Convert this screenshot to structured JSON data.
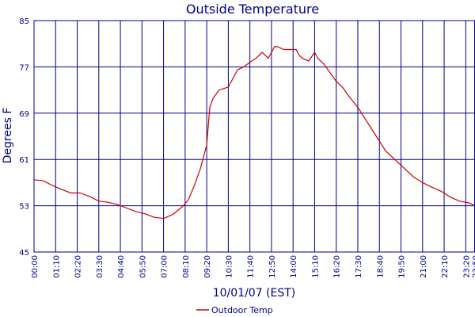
{
  "chart_data": {
    "type": "line",
    "title": "Outside Temperature",
    "xlabel": "10/01/07 (EST)",
    "ylabel": "Degrees F",
    "ylim": [
      45,
      85
    ],
    "yticks": [
      45,
      53,
      61,
      69,
      77,
      85
    ],
    "xlim_minutes": [
      0,
      1430
    ],
    "xticks": [
      "00:00",
      "01:10",
      "02:20",
      "03:30",
      "04:40",
      "05:50",
      "07:00",
      "08:10",
      "09:20",
      "10:30",
      "11:40",
      "12:50",
      "14:00",
      "15:10",
      "16:20",
      "17:30",
      "18:40",
      "19:50",
      "21:00",
      "22:10",
      "23:20",
      "23:50"
    ],
    "grid": true,
    "legend": "bottom-center",
    "colors": {
      "line": "#cc0000",
      "grid": "#00008b",
      "text": "#00008b"
    },
    "series": [
      {
        "name": "Outdoor Temp",
        "x": [
          "00:00",
          "00:30",
          "01:00",
          "01:30",
          "02:00",
          "02:30",
          "03:00",
          "03:30",
          "04:00",
          "04:30",
          "05:00",
          "05:30",
          "06:00",
          "06:30",
          "07:00",
          "07:30",
          "08:00",
          "08:20",
          "08:40",
          "09:00",
          "09:20",
          "09:30",
          "09:40",
          "10:00",
          "10:30",
          "10:45",
          "11:00",
          "11:20",
          "11:40",
          "12:00",
          "12:20",
          "12:40",
          "12:50",
          "13:00",
          "13:10",
          "13:30",
          "13:50",
          "14:10",
          "14:20",
          "14:30",
          "14:50",
          "15:10",
          "15:20",
          "15:40",
          "16:00",
          "16:20",
          "16:40",
          "17:00",
          "17:30",
          "18:00",
          "18:30",
          "19:00",
          "19:30",
          "20:00",
          "20:30",
          "21:00",
          "21:30",
          "22:00",
          "22:30",
          "23:00",
          "23:30",
          "23:50"
        ],
        "values": [
          57.5,
          57.3,
          56.5,
          55.8,
          55.2,
          55.2,
          54.6,
          53.8,
          53.6,
          53.2,
          52.6,
          52.0,
          51.6,
          51.0,
          50.8,
          51.5,
          52.8,
          54.0,
          56.5,
          59.5,
          63.5,
          70.0,
          71.5,
          73.0,
          73.5,
          75.0,
          76.5,
          77.0,
          77.8,
          78.5,
          79.5,
          78.5,
          79.5,
          80.5,
          80.5,
          80.0,
          80.0,
          80.0,
          79.0,
          78.5,
          78.0,
          79.5,
          78.5,
          77.5,
          76.0,
          74.5,
          73.5,
          72.0,
          70.0,
          67.5,
          65.0,
          62.5,
          61.0,
          59.5,
          58.0,
          57.0,
          56.2,
          55.5,
          54.5,
          53.8,
          53.5,
          53.0
        ]
      }
    ]
  }
}
